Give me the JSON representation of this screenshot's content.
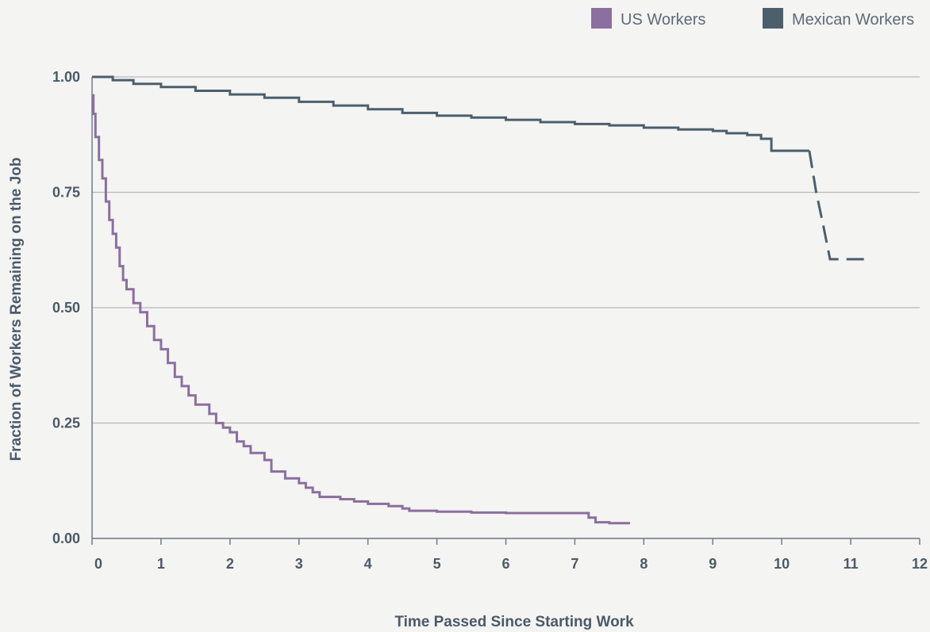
{
  "chart_data": {
    "type": "line",
    "xlabel": "Time Passed Since Starting Work",
    "ylabel": "Fraction of Workers Remaining on the Job",
    "xlim": [
      0,
      12
    ],
    "ylim": [
      0,
      1
    ],
    "x_ticks": [
      0,
      1,
      2,
      3,
      4,
      5,
      6,
      7,
      8,
      9,
      10,
      11,
      12
    ],
    "y_ticks": [
      "0.00",
      "0.25",
      "0.50",
      "0.75",
      "1.00"
    ],
    "y_tick_values": [
      0,
      0.25,
      0.5,
      0.75,
      1.0
    ],
    "grid": "horizontal",
    "legend_position": "top-right",
    "series": [
      {
        "name": "US Workers",
        "color": "#8b6f9e",
        "step": true,
        "points": [
          [
            0,
            0.96
          ],
          [
            0.02,
            0.92
          ],
          [
            0.05,
            0.87
          ],
          [
            0.1,
            0.82
          ],
          [
            0.15,
            0.78
          ],
          [
            0.2,
            0.73
          ],
          [
            0.25,
            0.69
          ],
          [
            0.3,
            0.66
          ],
          [
            0.35,
            0.63
          ],
          [
            0.4,
            0.59
          ],
          [
            0.45,
            0.56
          ],
          [
            0.5,
            0.54
          ],
          [
            0.6,
            0.51
          ],
          [
            0.7,
            0.49
          ],
          [
            0.8,
            0.46
          ],
          [
            0.9,
            0.43
          ],
          [
            1.0,
            0.41
          ],
          [
            1.1,
            0.38
          ],
          [
            1.2,
            0.35
          ],
          [
            1.3,
            0.33
          ],
          [
            1.4,
            0.31
          ],
          [
            1.5,
            0.29
          ],
          [
            1.7,
            0.27
          ],
          [
            1.8,
            0.25
          ],
          [
            1.9,
            0.24
          ],
          [
            2.0,
            0.23
          ],
          [
            2.1,
            0.21
          ],
          [
            2.2,
            0.2
          ],
          [
            2.3,
            0.185
          ],
          [
            2.5,
            0.17
          ],
          [
            2.6,
            0.145
          ],
          [
            2.8,
            0.13
          ],
          [
            3.0,
            0.12
          ],
          [
            3.1,
            0.11
          ],
          [
            3.2,
            0.1
          ],
          [
            3.3,
            0.09
          ],
          [
            3.6,
            0.085
          ],
          [
            3.8,
            0.08
          ],
          [
            4.0,
            0.075
          ],
          [
            4.3,
            0.07
          ],
          [
            4.5,
            0.065
          ],
          [
            4.6,
            0.06
          ],
          [
            5.0,
            0.058
          ],
          [
            5.5,
            0.056
          ],
          [
            6.0,
            0.055
          ],
          [
            7.1,
            0.055
          ],
          [
            7.2,
            0.045
          ],
          [
            7.3,
            0.035
          ],
          [
            7.5,
            0.033
          ],
          [
            7.8,
            0.033
          ]
        ]
      },
      {
        "name": "Mexican Workers",
        "color": "#4b5f6d",
        "step": true,
        "points": [
          [
            0,
            1.0
          ],
          [
            0.3,
            0.993
          ],
          [
            0.6,
            0.985
          ],
          [
            1.0,
            0.978
          ],
          [
            1.5,
            0.97
          ],
          [
            2.0,
            0.962
          ],
          [
            2.5,
            0.955
          ],
          [
            3.0,
            0.946
          ],
          [
            3.5,
            0.938
          ],
          [
            4.0,
            0.93
          ],
          [
            4.5,
            0.922
          ],
          [
            5.0,
            0.916
          ],
          [
            5.5,
            0.912
          ],
          [
            6.0,
            0.907
          ],
          [
            6.5,
            0.902
          ],
          [
            7.0,
            0.898
          ],
          [
            7.5,
            0.895
          ],
          [
            8.0,
            0.89
          ],
          [
            8.5,
            0.886
          ],
          [
            9.0,
            0.883
          ],
          [
            9.2,
            0.878
          ],
          [
            9.5,
            0.874
          ],
          [
            9.7,
            0.866
          ],
          [
            9.85,
            0.84
          ],
          [
            10.4,
            0.84
          ]
        ],
        "dashed_points": [
          [
            10.4,
            0.84
          ],
          [
            10.5,
            0.75
          ],
          [
            10.6,
            0.68
          ],
          [
            10.7,
            0.605
          ],
          [
            11.3,
            0.605
          ]
        ]
      }
    ]
  }
}
